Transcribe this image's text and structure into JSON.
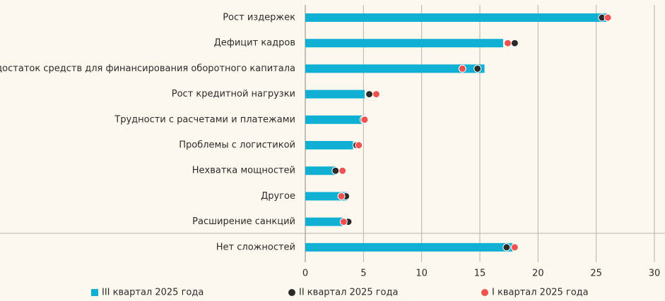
{
  "chart_data": {
    "type": "bar",
    "orientation": "horizontal",
    "categories": [
      "Рост издержек",
      "Дефицит кадров",
      "Недостаток средств для финансирования оборотного капитала",
      "Рост кредитной нагрузки",
      "Трудности с расчетами и платежами",
      "Проблемы с логистикой",
      "Нехватка мощностей",
      "Другое",
      "Расширение санкций",
      "Нет сложностей"
    ],
    "series": [
      {
        "name": "III квартал 2025 года",
        "color": "#0fb0d4",
        "style": "bar",
        "values": [
          25.9,
          17.0,
          15.4,
          5.1,
          4.9,
          4.1,
          2.6,
          3.6,
          3.2,
          17.8
        ]
      },
      {
        "name": "II квартал 2025 года",
        "color": "#2b2b2b",
        "style": "dot",
        "values": [
          25.5,
          18.0,
          14.8,
          5.5,
          5.0,
          4.4,
          2.6,
          3.5,
          3.7,
          17.3
        ]
      },
      {
        "name": "I квартал 2025 года",
        "color": "#f0524f",
        "style": "dot",
        "values": [
          26.0,
          17.4,
          13.5,
          6.1,
          5.1,
          4.6,
          3.2,
          3.1,
          3.3,
          18.0
        ]
      }
    ],
    "xlim": [
      0,
      30
    ],
    "xticks": [
      0,
      5,
      10,
      15,
      20,
      25,
      30
    ],
    "grid": true
  }
}
